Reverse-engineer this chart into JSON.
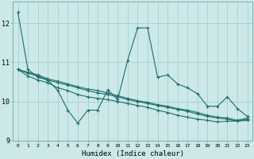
{
  "xlabel": "Humidex (Indice chaleur)",
  "bg_color": "#cce8e8",
  "grid_color": "#a8d0d0",
  "line_color": "#1a6e6a",
  "xlim": [
    -0.5,
    23.5
  ],
  "ylim": [
    9.0,
    12.55
  ],
  "yticks": [
    9,
    10,
    11,
    12
  ],
  "xticks": [
    0,
    1,
    2,
    3,
    4,
    5,
    6,
    7,
    8,
    9,
    10,
    11,
    12,
    13,
    14,
    15,
    16,
    17,
    18,
    19,
    20,
    21,
    22,
    23
  ],
  "series": [
    [
      12.28,
      10.82,
      10.62,
      10.55,
      10.28,
      9.78,
      9.45,
      9.78,
      9.78,
      10.3,
      10.05,
      11.05,
      11.88,
      11.88,
      10.62,
      10.68,
      10.45,
      10.35,
      10.2,
      9.88,
      9.88,
      10.12,
      9.82,
      9.62
    ],
    [
      10.82,
      10.65,
      10.55,
      10.48,
      10.35,
      10.28,
      10.18,
      10.12,
      10.08,
      10.05,
      10.0,
      9.95,
      9.9,
      9.85,
      9.78,
      9.72,
      9.65,
      9.6,
      9.55,
      9.52,
      9.48,
      9.5,
      9.5,
      9.52
    ],
    [
      10.82,
      10.72,
      10.65,
      10.55,
      10.48,
      10.42,
      10.35,
      10.28,
      10.22,
      10.18,
      10.12,
      10.05,
      10.0,
      9.95,
      9.9,
      9.85,
      9.8,
      9.75,
      9.68,
      9.62,
      9.58,
      9.55,
      9.5,
      9.55
    ],
    [
      10.82,
      10.75,
      10.68,
      10.58,
      10.52,
      10.45,
      10.38,
      10.32,
      10.28,
      10.22,
      10.15,
      10.08,
      10.02,
      9.98,
      9.92,
      9.88,
      9.82,
      9.78,
      9.72,
      9.65,
      9.6,
      9.58,
      9.52,
      9.58
    ]
  ]
}
